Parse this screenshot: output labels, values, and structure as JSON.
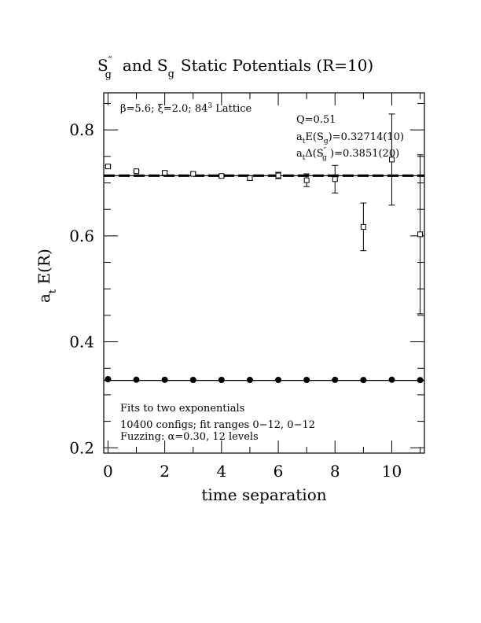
{
  "chart_data": {
    "type": "scatter",
    "title_parts": {
      "s": "S",
      "pp": "″",
      "g1": "g",
      "and": "and  S",
      "g2": "g",
      "rest": "Static Potentials (R=10)"
    },
    "xlabel": "time separation",
    "ylabel": {
      "a": "a",
      "t": "t",
      "rest": " E(R)"
    },
    "xlim": [
      -0.15,
      11.15
    ],
    "ylim": [
      0.19,
      0.87
    ],
    "xticks": [
      0,
      2,
      4,
      6,
      8,
      10
    ],
    "xtick_labels": [
      "0",
      "2",
      "4",
      "6",
      "8",
      "10"
    ],
    "yticks": [
      0.2,
      0.4,
      0.6,
      0.8
    ],
    "ytick_labels": [
      "0.2",
      "0.4",
      "0.6",
      "0.8"
    ],
    "annotations": {
      "lattice": "β=5.6; ξ=2.0; 8⁴3 Lattice",
      "lattice_parts": {
        "pre": "β=5.6; ξ=2.0; 84",
        "sup": "3",
        "post": " Lattice"
      },
      "q": "Q=0.51",
      "energy": {
        "a": "a",
        "t": "t",
        "mid": "E(S",
        "g": "g",
        "val": ")=0.32714(10)"
      },
      "delta": {
        "a": "a",
        "t": "t",
        "mid": "Δ(S",
        "pp": "″",
        "g": "g",
        "val": " )=0.3851(20)"
      },
      "fits": "Fits to two exponentials",
      "configs": "10400 configs; fit ranges 0−12, 0−12",
      "fuzzing": "Fuzzing: α=0.30, 12 levels"
    },
    "series": [
      {
        "marker": "open-square",
        "x": [
          0,
          1,
          2,
          3,
          4,
          5,
          6,
          7,
          8,
          9,
          10,
          11
        ],
        "y": [
          0.731,
          0.722,
          0.719,
          0.717,
          0.713,
          0.709,
          0.714,
          0.705,
          0.707,
          0.617,
          0.744,
          0.603
        ],
        "err": [
          0.002,
          0.002,
          0.003,
          0.003,
          0.003,
          0.004,
          0.006,
          0.012,
          0.026,
          0.045,
          0.086,
          0.15
        ]
      },
      {
        "marker": "filled-circle",
        "x": [
          0,
          1,
          2,
          3,
          4,
          5,
          6,
          7,
          8,
          9,
          10,
          11
        ],
        "y": [
          0.3295,
          0.3285,
          0.3283,
          0.3281,
          0.3281,
          0.3281,
          0.3281,
          0.3281,
          0.3282,
          0.3279,
          0.3285,
          0.3278
        ],
        "err": [
          0,
          0,
          0,
          0,
          0,
          0,
          0,
          0,
          0,
          0,
          0,
          0
        ]
      }
    ],
    "fit_lines": [
      {
        "style": "dashed",
        "y": 0.7122
      },
      {
        "style": "solid",
        "y": 0.7136
      },
      {
        "style": "dashed",
        "y": 0.715
      },
      {
        "style": "solid",
        "y": 0.32714
      }
    ]
  }
}
